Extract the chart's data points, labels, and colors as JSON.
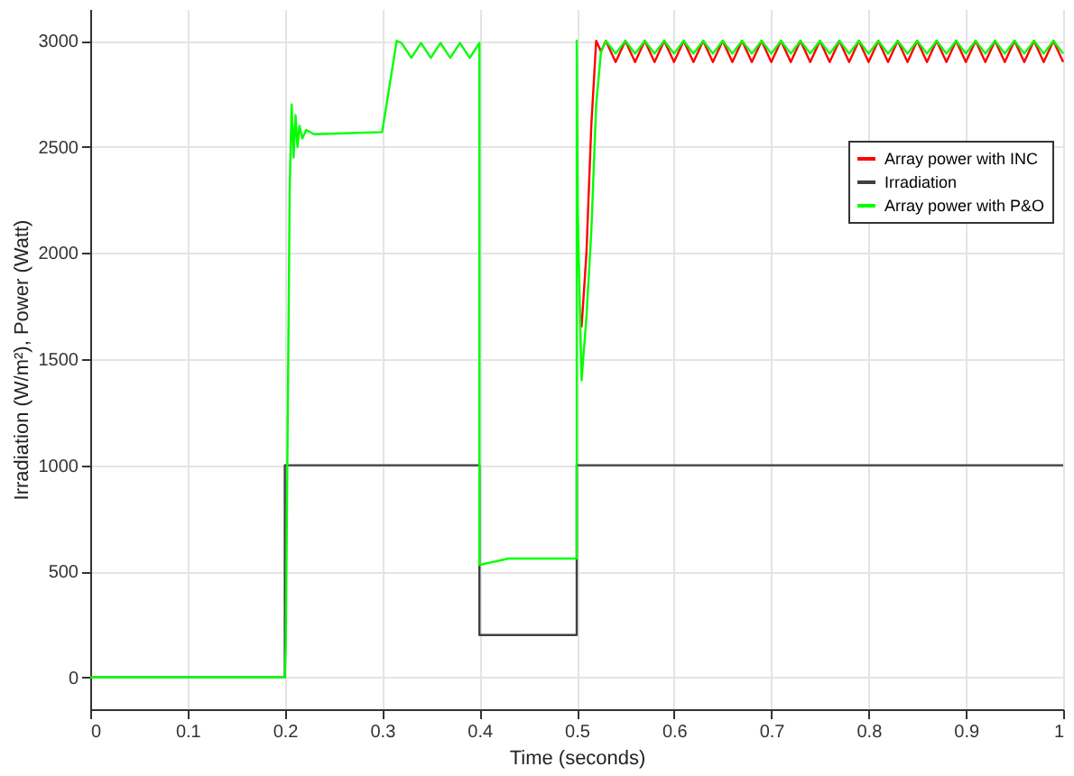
{
  "chart_data": {
    "type": "line",
    "xlabel": "Time (seconds)",
    "ylabel": "Irradiation (W/m²), Power (Watt)",
    "xlim": [
      0,
      1
    ],
    "ylim": [
      -150,
      3150
    ],
    "xticks": [
      0,
      0.1,
      0.2,
      0.3,
      0.4,
      0.5,
      0.6,
      0.7,
      0.8,
      0.9,
      1
    ],
    "yticks": [
      0,
      500,
      1000,
      1500,
      2000,
      2500,
      3000
    ],
    "grid": true,
    "legend": "right",
    "line_style": "solid",
    "marker": "none",
    "series": [
      {
        "name": "Array power with INC",
        "color": "#ff0000",
        "x": [
          0.505,
          0.51,
          0.515,
          0.52,
          0.525,
          0.53,
          0.54,
          0.55,
          0.56,
          0.57,
          0.58,
          0.59,
          0.6,
          0.61,
          0.62,
          0.63,
          0.64,
          0.65,
          0.66,
          0.67,
          0.68,
          0.69,
          0.7,
          0.71,
          0.72,
          0.73,
          0.74,
          0.75,
          0.76,
          0.77,
          0.78,
          0.79,
          0.8,
          0.81,
          0.82,
          0.83,
          0.84,
          0.85,
          0.86,
          0.87,
          0.88,
          0.89,
          0.9,
          0.91,
          0.92,
          0.93,
          0.94,
          0.95,
          0.96,
          0.97,
          0.98,
          0.99,
          1
        ],
        "values": [
          1650,
          2000,
          2600,
          3000,
          2950,
          3000,
          2900,
          3000,
          2900,
          3000,
          2900,
          3000,
          2900,
          3000,
          2900,
          3000,
          2900,
          3000,
          2900,
          3000,
          2900,
          3000,
          2900,
          3000,
          2900,
          3000,
          2900,
          3000,
          2900,
          3000,
          2900,
          3000,
          2900,
          3000,
          2900,
          3000,
          2900,
          3000,
          2900,
          3000,
          2900,
          3000,
          2900,
          3000,
          2900,
          3000,
          2900,
          3000,
          2900,
          3000,
          2900,
          3000,
          2900
        ]
      },
      {
        "name": "Irradiation",
        "color": "#404040",
        "x": [
          0,
          0.2,
          0.2,
          0.4,
          0.4,
          0.5,
          0.5,
          1
        ],
        "values": [
          0,
          0,
          1000,
          1000,
          200,
          200,
          1000,
          1000
        ]
      },
      {
        "name": "Array power with P&O",
        "color": "#00ff00",
        "x": [
          0,
          0.2,
          0.201,
          0.205,
          0.207,
          0.209,
          0.211,
          0.213,
          0.215,
          0.218,
          0.222,
          0.23,
          0.3,
          0.315,
          0.32,
          0.33,
          0.34,
          0.35,
          0.36,
          0.37,
          0.38,
          0.39,
          0.4,
          0.4,
          0.43,
          0.5,
          0.5,
          0.501,
          0.505,
          0.51,
          0.515,
          0.52,
          0.525,
          0.53,
          0.54,
          0.55,
          0.56,
          0.57,
          0.58,
          0.59,
          0.6,
          0.61,
          0.62,
          0.63,
          0.64,
          0.65,
          0.66,
          0.67,
          0.68,
          0.69,
          0.7,
          0.71,
          0.72,
          0.73,
          0.74,
          0.75,
          0.76,
          0.77,
          0.78,
          0.79,
          0.8,
          0.81,
          0.82,
          0.83,
          0.84,
          0.85,
          0.86,
          0.87,
          0.88,
          0.89,
          0.9,
          0.91,
          0.92,
          0.93,
          0.94,
          0.95,
          0.96,
          0.97,
          0.98,
          0.99,
          1
        ],
        "values": [
          0,
          0,
          150,
          2300,
          2700,
          2450,
          2650,
          2500,
          2600,
          2540,
          2580,
          2560,
          2570,
          3000,
          2990,
          2920,
          2990,
          2920,
          2990,
          2920,
          2990,
          2920,
          2990,
          530,
          560,
          560,
          3000,
          2200,
          1400,
          1700,
          2100,
          2700,
          2950,
          3000,
          2940,
          3000,
          2940,
          3000,
          2940,
          3000,
          2940,
          3000,
          2940,
          3000,
          2940,
          3000,
          2940,
          3000,
          2940,
          3000,
          2940,
          3000,
          2940,
          3000,
          2940,
          3000,
          2940,
          3000,
          2940,
          3000,
          2940,
          3000,
          2940,
          3000,
          2940,
          3000,
          2940,
          3000,
          2940,
          3000,
          2940,
          3000,
          2940,
          3000,
          2940,
          3000,
          2940,
          3000,
          2940,
          3000,
          2940
        ]
      }
    ]
  }
}
